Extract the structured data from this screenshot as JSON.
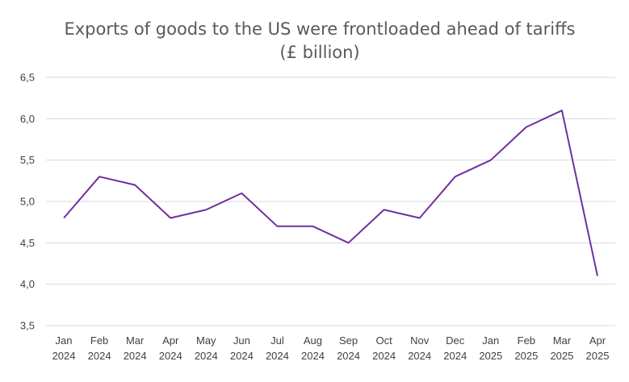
{
  "chart_data": {
    "type": "line",
    "title": "Exports of goods to the US were frontloaded ahead of tariffs",
    "subtitle": "(£ billion)",
    "xlabel": "",
    "ylabel": "",
    "categories": [
      [
        "Jan",
        "2024"
      ],
      [
        "Feb",
        "2024"
      ],
      [
        "Mar",
        "2024"
      ],
      [
        "Apr",
        "2024"
      ],
      [
        "May",
        "2024"
      ],
      [
        "Jun",
        "2024"
      ],
      [
        "Jul",
        "2024"
      ],
      [
        "Aug",
        "2024"
      ],
      [
        "Sep",
        "2024"
      ],
      [
        "Oct",
        "2024"
      ],
      [
        "Nov",
        "2024"
      ],
      [
        "Dec",
        "2024"
      ],
      [
        "Jan",
        "2025"
      ],
      [
        "Feb",
        "2025"
      ],
      [
        "Mar",
        "2025"
      ],
      [
        "Apr",
        "2025"
      ]
    ],
    "series": [
      {
        "name": "",
        "color": "#7030a0",
        "values": [
          4.8,
          5.3,
          5.2,
          4.8,
          4.9,
          5.1,
          4.7,
          4.7,
          4.5,
          4.9,
          4.8,
          5.3,
          5.5,
          5.9,
          6.1,
          4.1
        ]
      }
    ],
    "ylim": [
      3.5,
      6.5
    ],
    "yticks": [
      3.5,
      4.0,
      4.5,
      5.0,
      5.5,
      6.0,
      6.5
    ],
    "ytick_labels": [
      "3,5",
      "4,0",
      "4,5",
      "5,0",
      "5,5",
      "6,0",
      "6,5"
    ],
    "grid": true,
    "legend": "none"
  }
}
